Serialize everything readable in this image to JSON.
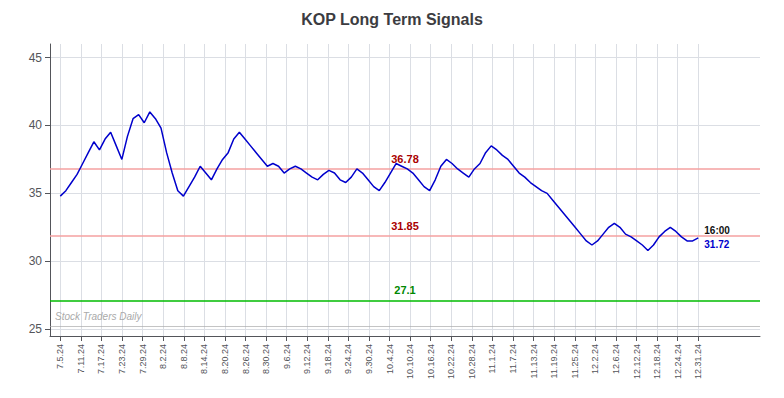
{
  "chart_data": {
    "type": "line",
    "title": "KOP Long Term Signals",
    "color": "#0000cc",
    "grid": true,
    "xlim": [
      -0.5,
      34
    ],
    "xticks": [
      {
        "value": 0,
        "label": "7.5.24"
      },
      {
        "value": 1,
        "label": "7.11.24"
      },
      {
        "value": 2,
        "label": "7.17.24"
      },
      {
        "value": 3,
        "label": "7.23.24"
      },
      {
        "value": 4,
        "label": "7.29.24"
      },
      {
        "value": 5,
        "label": "8.2.24"
      },
      {
        "value": 6,
        "label": "8.8.24"
      },
      {
        "value": 7,
        "label": "8.14.24"
      },
      {
        "value": 8,
        "label": "8.20.24"
      },
      {
        "value": 9,
        "label": "8.26.24"
      },
      {
        "value": 10,
        "label": "8.30.24"
      },
      {
        "value": 11,
        "label": "9.6.24"
      },
      {
        "value": 12,
        "label": "9.12.24"
      },
      {
        "value": 13,
        "label": "9.18.24"
      },
      {
        "value": 14,
        "label": "9.24.24"
      },
      {
        "value": 15,
        "label": "9.30.24"
      },
      {
        "value": 16,
        "label": "10.4.24"
      },
      {
        "value": 17,
        "label": "10.10.24"
      },
      {
        "value": 18,
        "label": "10.16.24"
      },
      {
        "value": 19,
        "label": "10.22.24"
      },
      {
        "value": 20,
        "label": "10.28.24"
      },
      {
        "value": 21,
        "label": "11.1.24"
      },
      {
        "value": 22,
        "label": "11.7.24"
      },
      {
        "value": 23,
        "label": "11.13.24"
      },
      {
        "value": 24,
        "label": "11.19.24"
      },
      {
        "value": 25,
        "label": "11.25.24"
      },
      {
        "value": 26,
        "label": "12.2.24"
      },
      {
        "value": 27,
        "label": "12.6.24"
      },
      {
        "value": 28,
        "label": "12.12.24"
      },
      {
        "value": 29,
        "label": "12.18.24"
      },
      {
        "value": 30,
        "label": "12.24.24"
      },
      {
        "value": 31,
        "label": "12.31.24"
      }
    ],
    "ylim": [
      24.5,
      46
    ],
    "yticks": [
      25,
      30,
      35,
      40,
      45
    ],
    "x": [
      0,
      0.2719,
      0.5439,
      0.8158,
      1.0877,
      1.3596,
      1.6316,
      1.9035,
      2.1754,
      2.4474,
      2.7193,
      2.9912,
      3.2632,
      3.5351,
      3.807,
      4.0789,
      4.3509,
      4.6228,
      4.8947,
      5.1667,
      5.4386,
      5.7105,
      5.9825,
      6.2544,
      6.5263,
      6.7982,
      7.0702,
      7.3421,
      7.614,
      7.886,
      8.1579,
      8.4298,
      8.7018,
      8.9737,
      9.2456,
      9.5175,
      9.7895,
      10.0614,
      10.3333,
      10.6053,
      10.8772,
      11.1491,
      11.4211,
      11.693,
      11.9649,
      12.2368,
      12.5088,
      12.7807,
      13.0526,
      13.3246,
      13.5965,
      13.8684,
      14.1404,
      14.4123,
      14.6842,
      14.9561,
      15.2281,
      15.5,
      15.7719,
      16.0439,
      16.3158,
      16.5877,
      16.8596,
      17.1316,
      17.4035,
      17.6754,
      17.9474,
      18.2193,
      18.4912,
      18.7632,
      19.0351,
      19.307,
      19.5789,
      19.8509,
      20.1228,
      20.3947,
      20.6667,
      20.9386,
      21.2105,
      21.4825,
      21.7544,
      22.0263,
      22.2982,
      22.5702,
      22.8421,
      23.114,
      23.386,
      23.6579,
      23.9298,
      24.2018,
      24.4737,
      24.7456,
      25.0175,
      25.2895,
      25.5614,
      25.8333,
      26.1053,
      26.3772,
      26.6491,
      26.9211,
      27.193,
      27.4649,
      27.7368,
      28.0088,
      28.2807,
      28.5526,
      28.8246,
      29.0965,
      29.3684,
      29.6404,
      29.9123,
      30.1842,
      30.4561,
      30.7281,
      31
    ],
    "values": [
      34.8,
      35.2,
      35.8,
      36.4,
      37.2,
      38.0,
      38.8,
      38.2,
      39.0,
      39.5,
      38.5,
      37.5,
      39.2,
      40.5,
      40.8,
      40.2,
      41.0,
      40.5,
      39.8,
      38.0,
      36.5,
      35.2,
      34.8,
      35.5,
      36.2,
      37.0,
      36.5,
      36.0,
      36.8,
      37.5,
      38.0,
      39.0,
      39.5,
      39.0,
      38.5,
      38.0,
      37.5,
      37.0,
      37.2,
      37.0,
      36.5,
      36.8,
      37.0,
      36.8,
      36.5,
      36.2,
      36.0,
      36.4,
      36.7,
      36.5,
      36.0,
      35.8,
      36.2,
      36.8,
      36.5,
      36.0,
      35.5,
      35.2,
      35.8,
      36.5,
      37.2,
      37.0,
      36.8,
      36.5,
      36.0,
      35.5,
      35.2,
      36.0,
      37.0,
      37.5,
      37.2,
      36.8,
      36.5,
      36.2,
      36.8,
      37.2,
      38.0,
      38.5,
      38.2,
      37.8,
      37.5,
      37.0,
      36.5,
      36.2,
      35.8,
      35.5,
      35.2,
      35.0,
      34.5,
      34.0,
      33.5,
      33.0,
      32.5,
      32.0,
      31.5,
      31.2,
      31.5,
      32.0,
      32.5,
      32.8,
      32.5,
      32.0,
      31.8,
      31.5,
      31.2,
      30.8,
      31.2,
      31.8,
      32.2,
      32.5,
      32.2,
      31.8,
      31.5,
      31.5,
      31.72
    ],
    "hlines": [
      {
        "value": 36.78,
        "label": "36.78",
        "color": "#f5a0a0",
        "label_color": "#aa0000"
      },
      {
        "value": 31.85,
        "label": "31.85",
        "color": "#f5a0a0",
        "label_color": "#aa0000"
      },
      {
        "value": 27.1,
        "label": "27.1",
        "color": "#00bb00",
        "label_color": "#008800"
      }
    ],
    "watermark": {
      "text": "Stock Traders Daily",
      "color": "#aaaaaa",
      "line": 25.2
    },
    "end_labels": [
      {
        "text": "16:00",
        "color": "#111111"
      },
      {
        "text": "31.72",
        "color": "#0000cc"
      }
    ]
  }
}
